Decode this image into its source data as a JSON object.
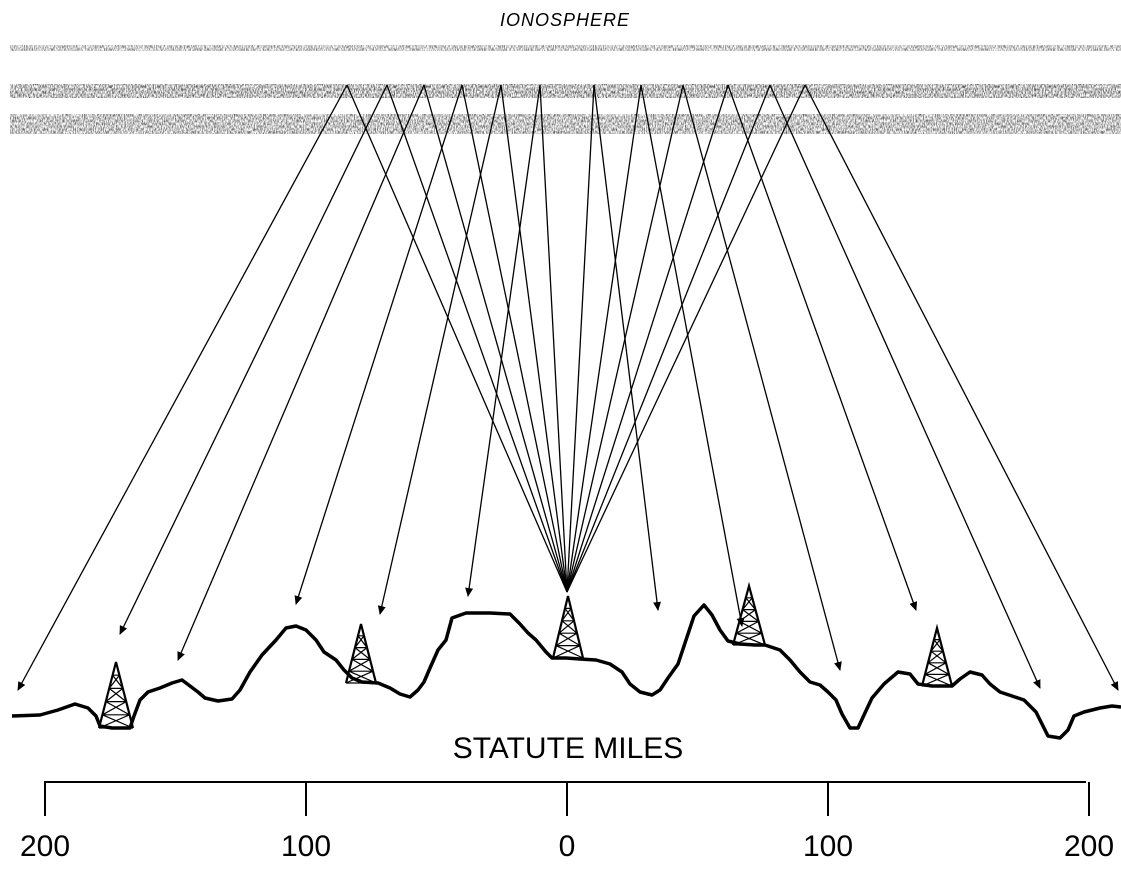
{
  "ionosphere_label": "IONOSPHERE",
  "axis_title": "STATUTE MILES",
  "ticks": [
    {
      "label": "200",
      "value": -200
    },
    {
      "label": "100",
      "value": -100
    },
    {
      "label": "0",
      "value": 0
    },
    {
      "label": "100",
      "value": 100
    },
    {
      "label": "200",
      "value": 200
    }
  ],
  "colors": {
    "ink": "#000000",
    "ionosphere": "#8a8a8a",
    "background": "#ffffff"
  }
}
